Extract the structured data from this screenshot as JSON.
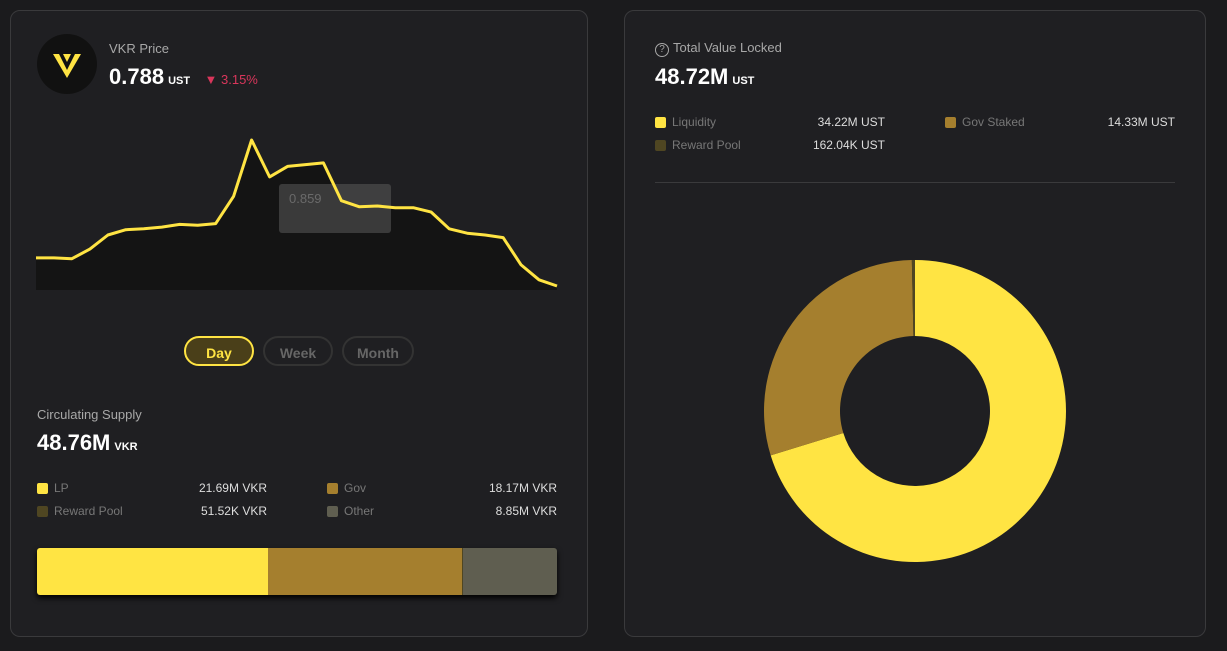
{
  "price_card": {
    "label": "VKR Price",
    "price": "0.788",
    "unit": "UST",
    "change": "3.15%",
    "chart": {
      "type": "line",
      "color": "#ffe443",
      "tooltip": "0.859",
      "values": [
        0.82,
        0.82,
        0.819,
        0.83,
        0.846,
        0.852,
        0.853,
        0.855,
        0.858,
        0.857,
        0.859,
        0.89,
        0.954,
        0.912,
        0.924,
        0.926,
        0.928,
        0.885,
        0.878,
        0.879,
        0.877,
        0.877,
        0.872,
        0.853,
        0.848,
        0.846,
        0.843,
        0.812,
        0.795,
        0.788
      ]
    },
    "ranges": [
      "Day",
      "Week",
      "Month"
    ]
  },
  "supply": {
    "title": "Circulating Supply",
    "amount": "48.76M",
    "unit": "VKR",
    "type": "stacked-bar",
    "items": [
      {
        "name": "LP",
        "value": 21690000,
        "value_label": "21.69M VKR",
        "color": "#ffe443"
      },
      {
        "name": "Gov",
        "value": 18170000,
        "value_label": "18.17M VKR",
        "color": "#a57f2e"
      },
      {
        "name": "Reward Pool",
        "value": 51520,
        "value_label": "51.52K VKR",
        "color": "#4f4622"
      },
      {
        "name": "Other",
        "value": 8850000,
        "value_label": "8.85M VKR",
        "color": "#5f5e50"
      }
    ]
  },
  "tvl": {
    "title": "Total Value Locked",
    "amount": "48.72M",
    "unit": "UST",
    "type": "donut",
    "items": [
      {
        "name": "Liquidity",
        "value": 34220000,
        "value_label": "34.22M UST",
        "color": "#ffe443"
      },
      {
        "name": "Gov Staked",
        "value": 14330000,
        "value_label": "14.33M UST",
        "color": "#a57f2e"
      },
      {
        "name": "Reward Pool",
        "value": 162040,
        "value_label": "162.04K UST",
        "color": "#4f4622"
      }
    ]
  }
}
